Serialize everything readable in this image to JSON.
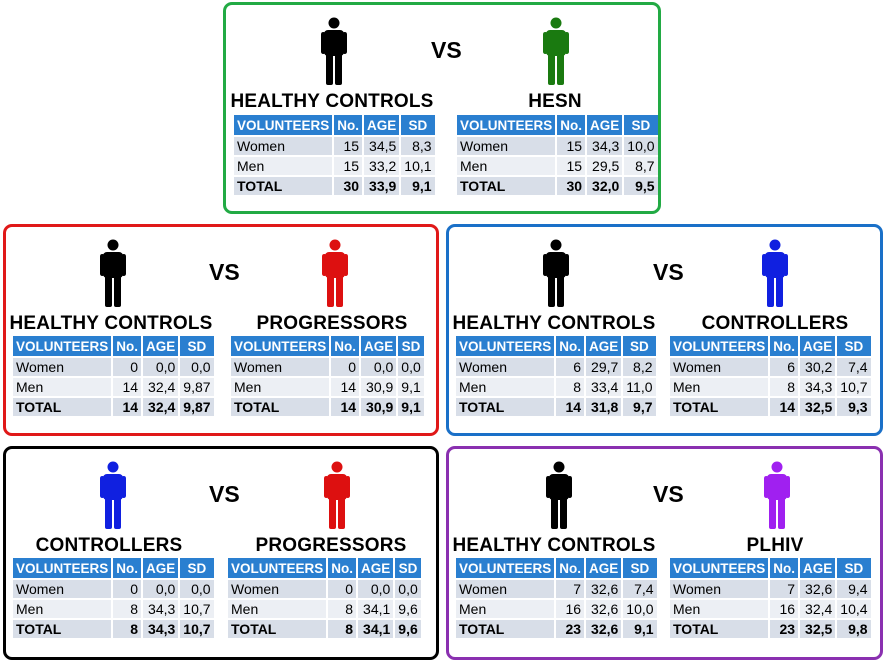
{
  "vs_label": "VS",
  "table_headers": [
    "VOLUNTEERS",
    "No.",
    "AGE",
    "SD"
  ],
  "colors": {
    "header_blue": "#2a7fd0",
    "black_figure": "#000000",
    "green_figure": "#1a7a10",
    "red_figure": "#dd1010",
    "blue_figure": "#1020e0",
    "purple_figure": "#a020f0"
  },
  "panels": [
    {
      "border": "#22aa44",
      "groups": [
        {
          "title": "HEALTHY CONTROLS",
          "figure_color": "#000000",
          "rows": [
            [
              "Women",
              "15",
              "34,5",
              "8,3"
            ],
            [
              "Men",
              "15",
              "33,2",
              "10,1"
            ],
            [
              "TOTAL",
              "30",
              "33,9",
              "9,1"
            ]
          ]
        },
        {
          "title": "HESN",
          "figure_color": "#1a7a10",
          "rows": [
            [
              "Women",
              "15",
              "34,3",
              "10,0"
            ],
            [
              "Men",
              "15",
              "29,5",
              "8,7"
            ],
            [
              "TOTAL",
              "30",
              "32,0",
              "9,5"
            ]
          ]
        }
      ]
    },
    {
      "border": "#e01818",
      "groups": [
        {
          "title": "HEALTHY CONTROLS",
          "figure_color": "#000000",
          "rows": [
            [
              "Women",
              "0",
              "0,0",
              "0,0"
            ],
            [
              "Men",
              "14",
              "32,4",
              "9,87"
            ],
            [
              "TOTAL",
              "14",
              "32,4",
              "9,87"
            ]
          ]
        },
        {
          "title": "PROGRESSORS",
          "figure_color": "#dd1010",
          "rows": [
            [
              "Women",
              "0",
              "0,0",
              "0,0"
            ],
            [
              "Men",
              "14",
              "30,9",
              "9,1"
            ],
            [
              "TOTAL",
              "14",
              "30,9",
              "9,1"
            ]
          ]
        }
      ]
    },
    {
      "border": "#1a70c8",
      "groups": [
        {
          "title": "HEALTHY CONTROLS",
          "figure_color": "#000000",
          "rows": [
            [
              "Women",
              "6",
              "29,7",
              "8,2"
            ],
            [
              "Men",
              "8",
              "33,4",
              "11,0"
            ],
            [
              "TOTAL",
              "14",
              "31,8",
              "9,7"
            ]
          ]
        },
        {
          "title": "CONTROLLERS",
          "figure_color": "#1020e0",
          "rows": [
            [
              "Women",
              "6",
              "30,2",
              "7,4"
            ],
            [
              "Men",
              "8",
              "34,3",
              "10,7"
            ],
            [
              "TOTAL",
              "14",
              "32,5",
              "9,3"
            ]
          ]
        }
      ]
    },
    {
      "border": "#000000",
      "groups": [
        {
          "title": "CONTROLLERS",
          "figure_color": "#1020e0",
          "rows": [
            [
              "Women",
              "0",
              "0,0",
              "0,0"
            ],
            [
              "Men",
              "8",
              "34,3",
              "10,7"
            ],
            [
              "TOTAL",
              "8",
              "34,3",
              "10,7"
            ]
          ]
        },
        {
          "title": "PROGRESSORS",
          "figure_color": "#dd1010",
          "rows": [
            [
              "Women",
              "0",
              "0,0",
              "0,0"
            ],
            [
              "Men",
              "8",
              "34,1",
              "9,6"
            ],
            [
              "TOTAL",
              "8",
              "34,1",
              "9,6"
            ]
          ]
        }
      ]
    },
    {
      "border": "#8a30b0",
      "groups": [
        {
          "title": "HEALTHY CONTROLS",
          "figure_color": "#000000",
          "rows": [
            [
              "Women",
              "7",
              "32,6",
              "7,4"
            ],
            [
              "Men",
              "16",
              "32,6",
              "10,0"
            ],
            [
              "TOTAL",
              "23",
              "32,6",
              "9,1"
            ]
          ]
        },
        {
          "title": "PLHIV",
          "figure_color": "#a020f0",
          "rows": [
            [
              "Women",
              "7",
              "32,6",
              "9,4"
            ],
            [
              "Men",
              "16",
              "32,4",
              "10,4"
            ],
            [
              "TOTAL",
              "23",
              "32,5",
              "9,8"
            ]
          ]
        }
      ]
    }
  ]
}
